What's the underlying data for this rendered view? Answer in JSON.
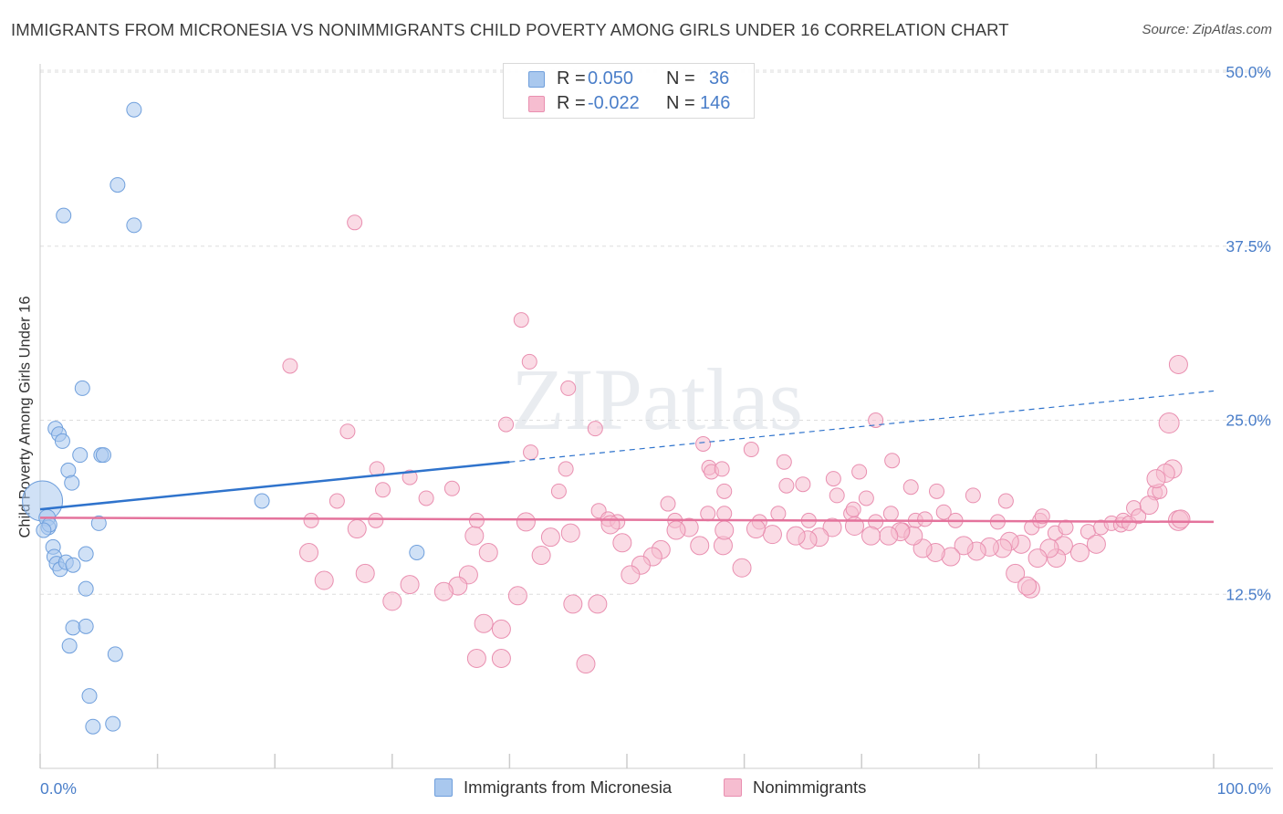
{
  "title": "IMMIGRANTS FROM MICRONESIA VS NONIMMIGRANTS CHILD POVERTY AMONG GIRLS UNDER 16 CORRELATION CHART",
  "source": "Source: ZipAtlas.com",
  "watermark": "ZIPatlas",
  "legend": {
    "r_label": "R =",
    "n_label": "N =",
    "series_a": {
      "r": "0.050",
      "n": "36"
    },
    "series_b": {
      "r": "-0.022",
      "n": "146"
    }
  },
  "bottom_legend": {
    "series_a": "Immigrants from Micronesia",
    "series_b": "Nonimmigrants"
  },
  "colors": {
    "series_a_fill": "#a9c8ee",
    "series_a_stroke": "#6f9fdc",
    "series_a_line": "#2f73cc",
    "series_b_fill": "#f6bdd0",
    "series_b_stroke": "#e98fb0",
    "series_b_line": "#e4739c",
    "tick_text": "#4a7ec9",
    "grid": "#dddddd"
  },
  "chart_data": {
    "type": "scatter",
    "title": "IMMIGRANTS FROM MICRONESIA VS NONIMMIGRANTS CHILD POVERTY AMONG GIRLS UNDER 16 CORRELATION CHART",
    "xlabel": "",
    "ylabel": "Child Poverty Among Girls Under 16",
    "xlim": [
      0,
      100
    ],
    "ylim": [
      0,
      50
    ],
    "x_tick_labels": [
      "0.0%",
      "100.0%"
    ],
    "y_ticks": [
      12.5,
      25.0,
      37.5,
      50.0
    ],
    "y_tick_labels": [
      "12.5%",
      "25.0%",
      "37.5%",
      "50.0%"
    ],
    "grid": true,
    "series": [
      {
        "name": "Immigrants from Micronesia",
        "R": 0.05,
        "N": 36,
        "trend": {
          "x": [
            0,
            40
          ],
          "y": [
            18.6,
            22.0
          ],
          "dashed_extension_to": [
            100,
            27.1
          ]
        },
        "points": [
          [
            0.2,
            19.2
          ],
          [
            0.6,
            18.0
          ],
          [
            0.7,
            17.3
          ],
          [
            0.8,
            17.5
          ],
          [
            1.1,
            15.9
          ],
          [
            1.2,
            15.2
          ],
          [
            1.4,
            14.7
          ],
          [
            1.7,
            14.3
          ],
          [
            2.2,
            14.8
          ],
          [
            2.8,
            14.6
          ],
          [
            3.9,
            15.4
          ],
          [
            3.9,
            12.9
          ],
          [
            1.3,
            24.4
          ],
          [
            1.6,
            24.0
          ],
          [
            1.9,
            23.5
          ],
          [
            2.4,
            21.4
          ],
          [
            2.7,
            20.5
          ],
          [
            3.4,
            22.5
          ],
          [
            5.2,
            22.5
          ],
          [
            5.4,
            22.5
          ],
          [
            3.6,
            27.3
          ],
          [
            5.0,
            17.6
          ],
          [
            2.8,
            10.1
          ],
          [
            3.9,
            10.2
          ],
          [
            2.5,
            8.8
          ],
          [
            6.4,
            8.2
          ],
          [
            4.2,
            5.2
          ],
          [
            4.5,
            3.0
          ],
          [
            6.2,
            3.2
          ],
          [
            2.0,
            39.7
          ],
          [
            8.0,
            39.0
          ],
          [
            6.6,
            41.9
          ],
          [
            8.0,
            47.3
          ],
          [
            18.9,
            19.2
          ],
          [
            32.1,
            15.5
          ],
          [
            0.3,
            17.1
          ]
        ],
        "sizes": [
          44,
          18,
          16,
          16,
          16,
          16,
          16,
          16,
          16,
          16,
          16,
          16,
          16,
          16,
          16,
          16,
          16,
          16,
          16,
          16,
          16,
          16,
          16,
          16,
          16,
          16,
          16,
          16,
          16,
          16,
          16,
          16,
          16,
          16,
          16,
          16
        ]
      },
      {
        "name": "Nonimmigrants",
        "R": -0.022,
        "N": 146,
        "trend": {
          "x": [
            0,
            100
          ],
          "y": [
            18.0,
            17.7
          ]
        },
        "points": [
          [
            26.8,
            39.2
          ],
          [
            41.0,
            32.2
          ],
          [
            21.3,
            28.9
          ],
          [
            41.7,
            29.2
          ],
          [
            45.0,
            27.3
          ],
          [
            26.2,
            24.2
          ],
          [
            39.7,
            24.7
          ],
          [
            47.3,
            24.4
          ],
          [
            56.5,
            23.3
          ],
          [
            71.2,
            25.0
          ],
          [
            41.8,
            22.7
          ],
          [
            57.0,
            21.6
          ],
          [
            57.2,
            21.3
          ],
          [
            72.6,
            22.1
          ],
          [
            28.7,
            21.5
          ],
          [
            31.5,
            20.9
          ],
          [
            35.1,
            20.1
          ],
          [
            44.8,
            21.5
          ],
          [
            58.1,
            21.5
          ],
          [
            60.6,
            22.9
          ],
          [
            63.4,
            22.0
          ],
          [
            67.6,
            20.8
          ],
          [
            69.8,
            21.3
          ],
          [
            74.2,
            20.2
          ],
          [
            76.4,
            19.9
          ],
          [
            29.2,
            20.0
          ],
          [
            32.9,
            19.4
          ],
          [
            44.2,
            19.9
          ],
          [
            53.5,
            19.0
          ],
          [
            58.3,
            19.9
          ],
          [
            63.6,
            20.3
          ],
          [
            65.0,
            20.4
          ],
          [
            67.9,
            19.6
          ],
          [
            70.4,
            19.4
          ],
          [
            79.5,
            19.6
          ],
          [
            82.3,
            19.2
          ],
          [
            93.2,
            18.7
          ],
          [
            95.0,
            19.8
          ],
          [
            95.4,
            19.9
          ],
          [
            25.3,
            19.2
          ],
          [
            28.6,
            17.8
          ],
          [
            23.1,
            17.8
          ],
          [
            37.2,
            17.8
          ],
          [
            47.6,
            18.5
          ],
          [
            48.4,
            17.9
          ],
          [
            49.2,
            17.7
          ],
          [
            54.1,
            17.8
          ],
          [
            56.9,
            18.3
          ],
          [
            58.3,
            18.3
          ],
          [
            61.3,
            17.7
          ],
          [
            62.9,
            18.3
          ],
          [
            65.5,
            17.8
          ],
          [
            69.1,
            18.3
          ],
          [
            69.3,
            18.6
          ],
          [
            71.2,
            17.7
          ],
          [
            72.5,
            18.3
          ],
          [
            73.5,
            17.1
          ],
          [
            74.6,
            17.8
          ],
          [
            75.4,
            17.9
          ],
          [
            77.0,
            18.4
          ],
          [
            78.0,
            17.8
          ],
          [
            81.6,
            17.7
          ],
          [
            84.5,
            17.3
          ],
          [
            85.2,
            17.8
          ],
          [
            85.4,
            18.1
          ],
          [
            86.5,
            16.9
          ],
          [
            87.4,
            17.3
          ],
          [
            89.3,
            17.0
          ],
          [
            90.4,
            17.3
          ],
          [
            91.3,
            17.6
          ],
          [
            92.1,
            17.5
          ],
          [
            92.3,
            17.8
          ],
          [
            92.8,
            17.6
          ],
          [
            93.6,
            18.1
          ],
          [
            97.0,
            17.8
          ],
          [
            96.2,
            24.8
          ],
          [
            97.0,
            29.0
          ],
          [
            96.5,
            21.5
          ],
          [
            95.9,
            21.2
          ],
          [
            95.1,
            20.8
          ],
          [
            94.5,
            18.9
          ],
          [
            90.0,
            16.1
          ],
          [
            88.6,
            15.5
          ],
          [
            87.2,
            16.0
          ],
          [
            86.6,
            15.1
          ],
          [
            86.0,
            15.8
          ],
          [
            85.0,
            15.1
          ],
          [
            83.6,
            16.1
          ],
          [
            82.6,
            16.3
          ],
          [
            82.0,
            15.8
          ],
          [
            80.9,
            15.9
          ],
          [
            79.8,
            15.6
          ],
          [
            78.7,
            16.0
          ],
          [
            77.6,
            15.2
          ],
          [
            76.3,
            15.5
          ],
          [
            75.2,
            15.8
          ],
          [
            74.4,
            16.7
          ],
          [
            73.3,
            17.0
          ],
          [
            72.3,
            16.7
          ],
          [
            70.8,
            16.7
          ],
          [
            69.4,
            17.4
          ],
          [
            67.5,
            17.3
          ],
          [
            66.4,
            16.6
          ],
          [
            65.4,
            16.4
          ],
          [
            64.4,
            16.7
          ],
          [
            62.4,
            16.8
          ],
          [
            61.0,
            17.2
          ],
          [
            58.2,
            16.0
          ],
          [
            58.3,
            17.1
          ],
          [
            59.8,
            14.4
          ],
          [
            56.2,
            16.0
          ],
          [
            55.3,
            17.3
          ],
          [
            54.2,
            17.1
          ],
          [
            52.9,
            15.7
          ],
          [
            52.2,
            15.2
          ],
          [
            51.2,
            14.6
          ],
          [
            50.3,
            13.9
          ],
          [
            49.6,
            16.2
          ],
          [
            48.6,
            17.5
          ],
          [
            41.4,
            17.7
          ],
          [
            43.5,
            16.6
          ],
          [
            45.2,
            16.9
          ],
          [
            42.7,
            15.3
          ],
          [
            37.0,
            16.7
          ],
          [
            38.2,
            15.5
          ],
          [
            36.5,
            13.9
          ],
          [
            35.6,
            13.1
          ],
          [
            31.5,
            13.2
          ],
          [
            27.0,
            17.2
          ],
          [
            22.9,
            15.5
          ],
          [
            24.2,
            13.5
          ],
          [
            27.7,
            14.0
          ],
          [
            30.0,
            12.0
          ],
          [
            34.4,
            12.7
          ],
          [
            40.7,
            12.4
          ],
          [
            37.8,
            10.4
          ],
          [
            39.3,
            10.0
          ],
          [
            45.4,
            11.8
          ],
          [
            47.5,
            11.8
          ],
          [
            37.2,
            7.9
          ],
          [
            39.3,
            7.9
          ],
          [
            46.5,
            7.5
          ],
          [
            83.1,
            14.0
          ],
          [
            84.4,
            12.9
          ],
          [
            84.1,
            13.1
          ],
          [
            97.2,
            17.9
          ]
        ],
        "sizes": [
          16,
          16,
          16,
          16,
          16,
          16,
          16,
          16,
          16,
          16,
          16,
          16,
          16,
          16,
          16,
          16,
          16,
          16,
          16,
          16,
          16,
          16,
          16,
          16,
          16,
          16,
          16,
          16,
          16,
          16,
          16,
          16,
          16,
          16,
          16,
          16,
          16,
          16,
          16,
          16,
          16,
          16,
          16,
          16,
          16,
          16,
          16,
          16,
          16,
          16,
          16,
          16,
          16,
          16,
          16,
          16,
          16,
          16,
          16,
          16,
          16,
          16,
          16,
          16,
          16,
          16,
          16,
          16,
          16,
          16,
          16,
          16,
          16,
          16,
          22,
          22,
          20,
          20,
          20,
          20,
          20,
          20,
          20,
          20,
          20,
          20,
          20,
          20,
          20,
          20,
          20,
          20,
          20,
          20,
          20,
          20,
          20,
          20,
          20,
          20,
          20,
          20,
          20,
          20,
          20,
          20,
          20,
          20,
          20,
          20,
          20,
          20,
          20,
          20,
          20,
          20,
          20,
          20,
          20,
          20,
          20,
          20,
          20,
          20,
          20,
          20,
          20,
          20,
          20,
          20,
          20,
          20,
          20,
          20,
          20,
          20,
          20,
          20,
          20,
          20,
          20,
          20,
          20,
          20,
          20,
          20
        ]
      }
    ]
  }
}
